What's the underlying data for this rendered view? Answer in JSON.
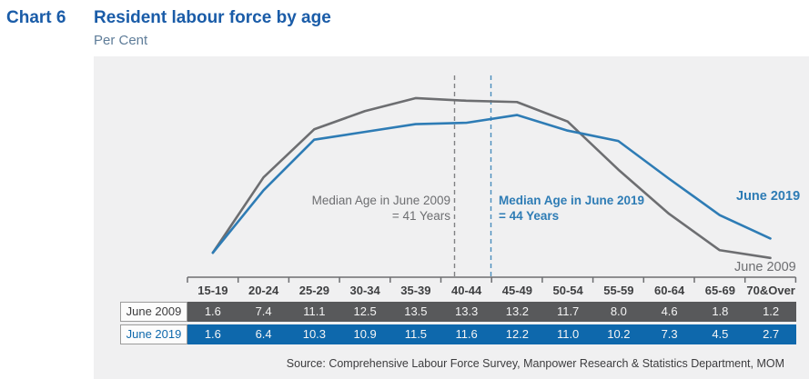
{
  "header": {
    "chart_label": "Chart 6",
    "title": "Resident labour force by age",
    "subtitle": "Per Cent"
  },
  "chart_data": {
    "type": "line",
    "units": "Per Cent",
    "categories": [
      "15-19",
      "20-24",
      "25-29",
      "30-34",
      "35-39",
      "40-44",
      "45-49",
      "50-54",
      "55-59",
      "60-64",
      "65-69",
      "70&Over"
    ],
    "series": [
      {
        "name": "June 2009",
        "color": "#6d6e71",
        "values": [
          1.6,
          7.4,
          11.1,
          12.5,
          13.5,
          13.3,
          13.2,
          11.7,
          8.0,
          4.6,
          1.8,
          1.2
        ]
      },
      {
        "name": "June 2019",
        "color": "#2e7cb5",
        "values": [
          1.6,
          6.4,
          10.3,
          10.9,
          11.5,
          11.6,
          12.2,
          11.0,
          10.2,
          7.3,
          4.5,
          2.7
        ]
      }
    ],
    "ylim": [
      0,
      16
    ],
    "grid": false,
    "legend_position": "end-of-line labels",
    "annotations": [
      {
        "line1": "Median Age in June 2009",
        "line2": "= 41 Years",
        "median_age": 41,
        "color": "#6d6e71",
        "style": "dashed-vertical"
      },
      {
        "line1": "Median Age in June 2019",
        "line2": "= 44 Years",
        "median_age": 44,
        "color": "#2e7cb5",
        "style": "dashed-vertical"
      }
    ]
  },
  "source": "Source: Comprehensive Labour Force Survey, Manpower Research & Statistics Department, MOM",
  "colors": {
    "title": "#1a5ca8",
    "subtitle": "#5f7d99",
    "panel_bg": "#f0f0f1",
    "axis": "#6d6e71",
    "row_2009_bg": "#58595b",
    "row_2019_bg": "#0e68ac",
    "category_label": "#3e3f41",
    "source_text": "#3c3c3e"
  }
}
